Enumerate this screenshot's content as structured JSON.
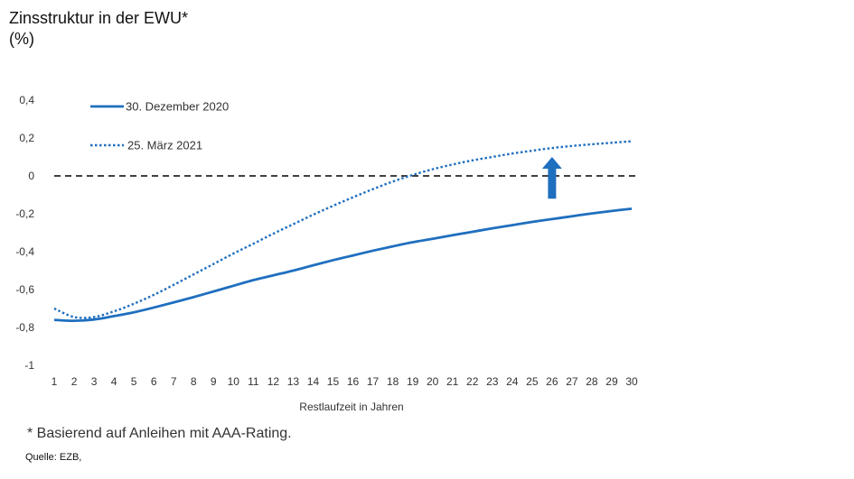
{
  "chart_data": {
    "type": "line",
    "title": "Zinsstruktur in der EWU*",
    "unit_label": "(%)",
    "xlabel": "Restlaufzeit  in Jahren",
    "ylabel": "",
    "x": [
      1,
      2,
      3,
      4,
      5,
      6,
      7,
      8,
      9,
      10,
      11,
      12,
      13,
      14,
      15,
      16,
      17,
      18,
      19,
      20,
      21,
      22,
      23,
      24,
      25,
      26,
      27,
      28,
      29,
      30
    ],
    "xticks": [
      "1",
      "2",
      "3",
      "4",
      "5",
      "6",
      "7",
      "8",
      "9",
      "10",
      "11",
      "12",
      "13",
      "14",
      "15",
      "16",
      "17",
      "18",
      "19",
      "20",
      "21",
      "22",
      "23",
      "24",
      "25",
      "26",
      "27",
      "28",
      "29",
      "30"
    ],
    "yticks": [
      "0,4",
      "0,2",
      "0",
      "-0,2",
      "-0,4",
      "-0,6",
      "-0,8",
      "-1"
    ],
    "ylim": [
      -1,
      0.4
    ],
    "zero_line": true,
    "legend_position": "top-left",
    "series": [
      {
        "name": "30. Dezember 2020",
        "style": "solid",
        "color": "#1f6fbf",
        "values": [
          -0.76,
          -0.765,
          -0.758,
          -0.74,
          -0.72,
          -0.695,
          -0.668,
          -0.64,
          -0.61,
          -0.58,
          -0.55,
          -0.525,
          -0.5,
          -0.472,
          -0.445,
          -0.42,
          -0.395,
          -0.372,
          -0.35,
          -0.332,
          -0.313,
          -0.295,
          -0.277,
          -0.26,
          -0.243,
          -0.228,
          -0.213,
          -0.198,
          -0.185,
          -0.173
        ]
      },
      {
        "name": "25. März 2021",
        "style": "dotted",
        "color": "#1f6fbf",
        "values": [
          -0.7,
          -0.745,
          -0.745,
          -0.715,
          -0.675,
          -0.628,
          -0.575,
          -0.52,
          -0.465,
          -0.41,
          -0.358,
          -0.305,
          -0.255,
          -0.205,
          -0.158,
          -0.113,
          -0.07,
          -0.03,
          0.005,
          0.035,
          0.06,
          0.082,
          0.1,
          0.118,
          0.133,
          0.147,
          0.158,
          0.167,
          0.175,
          0.183
        ]
      }
    ],
    "annotations": [
      {
        "type": "arrow",
        "direction": "up",
        "at_x": 26,
        "from_y": -0.12,
        "to_y": 0.1,
        "color": "#1f6fbf"
      }
    ]
  },
  "footnote": "* Basierend auf Anleihen mit AAA-Rating.",
  "source": "Quelle: EZB,"
}
